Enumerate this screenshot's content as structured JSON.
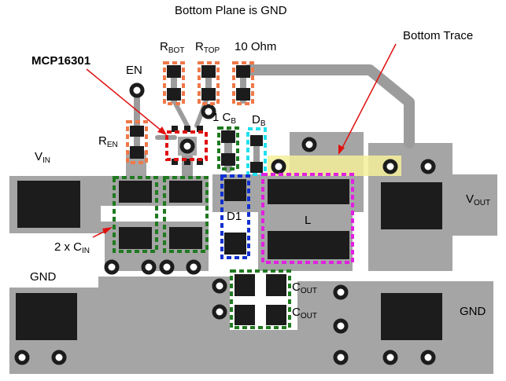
{
  "header": {
    "title": "Bottom Plane is GND"
  },
  "labels": {
    "bottom_trace": "Bottom Trace",
    "ic": "MCP16301",
    "en": "EN",
    "rbot_main": "R",
    "rbot_sub": "BOT",
    "rtop_main": "R",
    "rtop_sub": "TOP",
    "ohm": "10 Ohm",
    "ren_main": "R",
    "ren_sub": "EN",
    "cb_pre": "1",
    "cb_main": "C",
    "cb_sub": "B",
    "db_main": "D",
    "db_sub": "B",
    "vin_main": "V",
    "vin_sub": "IN",
    "vout_main": "V",
    "vout_sub": "OUT",
    "d1": "D1",
    "inductor": "L",
    "cin_pre": "2 x C",
    "cin_sub": "IN",
    "gnd_left": "GND",
    "gnd_right": "GND",
    "cout1_main": "C",
    "cout1_sub": "OUT",
    "cout2_main": "C",
    "cout2_sub": "OUT"
  },
  "colors": {
    "board": "#a5a5a5",
    "trace": "#9c9c9c",
    "pad": "#1c1c1c",
    "highlight_red": "#e01010",
    "highlight_orange": "#f07848",
    "highlight_green": "#1f7a1f",
    "highlight_blue": "#1030d0",
    "highlight_cyan": "#20e0f0",
    "highlight_magenta": "#e020e0",
    "bottom_trace_fill": "#f4ee9a"
  }
}
